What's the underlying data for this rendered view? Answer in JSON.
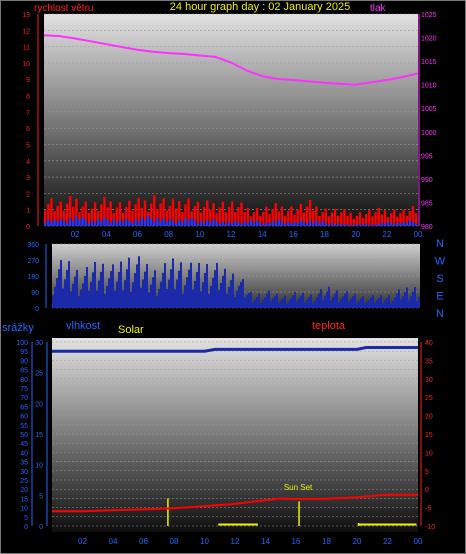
{
  "page": {
    "title": "24 hour graph day : 02 January 2025",
    "colors": {
      "background": "#000000",
      "frame": "#8a8a8a",
      "title": "#f0f000"
    }
  },
  "chart_data": [
    {
      "type": "line",
      "x_ticks": [
        "02",
        "04",
        "06",
        "08",
        "10",
        "12",
        "14",
        "16",
        "18",
        "20",
        "22",
        "00"
      ],
      "left_axis": {
        "label": "rychlost větru",
        "range": [
          0,
          13
        ],
        "ticks": [
          "0",
          "1",
          "2",
          "3",
          "4",
          "5",
          "6",
          "7",
          "8",
          "9",
          "10",
          "11",
          "12",
          "13"
        ],
        "color": "#ff2020"
      },
      "right_axis": {
        "label": "tlak",
        "range": [
          980,
          1025
        ],
        "ticks": [
          "980",
          "985",
          "990",
          "995",
          "1000",
          "1005",
          "1010",
          "1015",
          "1020",
          "1025"
        ],
        "color": "#ff30ff"
      },
      "series": [
        {
          "axis": "right",
          "color": "#ff30ff",
          "x": [
            0,
            1,
            2,
            3,
            4,
            5,
            6,
            7,
            8,
            9,
            10,
            11,
            12,
            13,
            14,
            15,
            16,
            17,
            18,
            19,
            20,
            21,
            22,
            23,
            24
          ],
          "y": [
            1020.5,
            1020.3,
            1019.8,
            1019.2,
            1018.6,
            1018,
            1017.4,
            1017,
            1016.7,
            1016.5,
            1016.2,
            1015.9,
            1014.7,
            1013,
            1011.8,
            1011.2,
            1011,
            1010.7,
            1010.4,
            1010.2,
            1010,
            1010.5,
            1011,
            1011.6,
            1012.4
          ]
        }
      ],
      "wind_bars": {
        "color_gust": "#ff0000",
        "color_avg": "#1a3cff",
        "x": [
          0,
          1,
          2,
          3,
          4,
          5,
          6,
          7,
          8,
          9,
          10,
          11,
          12,
          13,
          14,
          15,
          16,
          17,
          18,
          19,
          20,
          21,
          22,
          23,
          24
        ],
        "gust": [
          1.6,
          1.2,
          1.5,
          1.1,
          1.4,
          1.2,
          1.3,
          1.6,
          1.2,
          1.5,
          1.1,
          1.3,
          1.2,
          1.0,
          0.9,
          1.1,
          1.0,
          1.2,
          0.9,
          0.8,
          0.7,
          0.8,
          0.9,
          0.8,
          1.0
        ],
        "avg": [
          0.4,
          0.3,
          0.5,
          0.3,
          0.4,
          0.3,
          0.4,
          0.5,
          0.3,
          0.4,
          0.3,
          0.3,
          0.2,
          0.3,
          0.2,
          0.3,
          0.2,
          0.3,
          0.2,
          0.1,
          0.1,
          0.1,
          0.2,
          0.2,
          0.3
        ]
      }
    },
    {
      "type": "area",
      "left_ticks": [
        "0",
        "90",
        "180",
        "270",
        "360"
      ],
      "left_range": [
        0,
        360
      ],
      "right_labels": [
        "N",
        "W",
        "S",
        "E",
        "N"
      ],
      "series": [
        {
          "color": "#1a2aa8",
          "x": [
            0,
            1,
            2,
            3,
            4,
            5,
            6,
            7,
            8,
            9,
            10,
            11,
            12,
            13,
            14,
            15,
            16,
            17,
            18,
            19,
            20,
            21,
            22,
            23,
            24
          ],
          "y": [
            180,
            200,
            150,
            210,
            170,
            230,
            190,
            160,
            220,
            180,
            200,
            170,
            150,
            60,
            70,
            55,
            65,
            60,
            90,
            70,
            55,
            50,
            60,
            85,
            100
          ]
        }
      ]
    },
    {
      "type": "line",
      "labels": {
        "rain": "srážky",
        "humidity": "vlhkost",
        "solar": "Solar",
        "temperature": "teplota"
      },
      "annotation": "Sun Set",
      "left_axis": {
        "range": [
          0,
          100
        ],
        "ticks": [
          "0",
          "5",
          "10",
          "15",
          "20",
          "25",
          "30",
          "35",
          "40",
          "45",
          "50",
          "55",
          "60",
          "65",
          "70",
          "75",
          "80",
          "85",
          "90",
          "95",
          "100"
        ]
      },
      "mid_axis": {
        "range": [
          0,
          30
        ],
        "ticks": [
          "0",
          "5",
          "10",
          "15",
          "20",
          "25",
          "30"
        ]
      },
      "right_axis": {
        "range": [
          -10,
          40
        ],
        "ticks": [
          "-10",
          "-5",
          "0",
          "5",
          "10",
          "15",
          "20",
          "25",
          "30",
          "35",
          "40"
        ]
      },
      "series": [
        {
          "name": "vlhkost",
          "axis": "left",
          "color": "#1a2aa8",
          "x": [
            0,
            10,
            10.7,
            20,
            20.6,
            24
          ],
          "y": [
            95,
            95,
            96,
            96,
            97,
            97
          ]
        },
        {
          "name": "teplota",
          "axis": "right",
          "color": "#ff0000",
          "x": [
            0,
            2,
            4,
            6,
            8,
            10,
            12,
            14,
            15,
            16,
            18,
            20,
            22,
            24
          ],
          "y": [
            -6,
            -6,
            -5.7,
            -5.5,
            -5.2,
            -4.6,
            -4,
            -3,
            -2.5,
            -2.7,
            -2.6,
            -2.2,
            -1.5,
            -1.5
          ]
        }
      ],
      "solar_marks": [
        {
          "x": 7.6,
          "v": 9
        },
        {
          "x": 16.2,
          "v": 8
        },
        {
          "x": 20.1,
          "v": 1
        }
      ],
      "solar_baseline": [
        {
          "x0": 10.9,
          "x1": 13.5
        },
        {
          "x0": 20.1,
          "x1": 23.9
        }
      ]
    }
  ]
}
